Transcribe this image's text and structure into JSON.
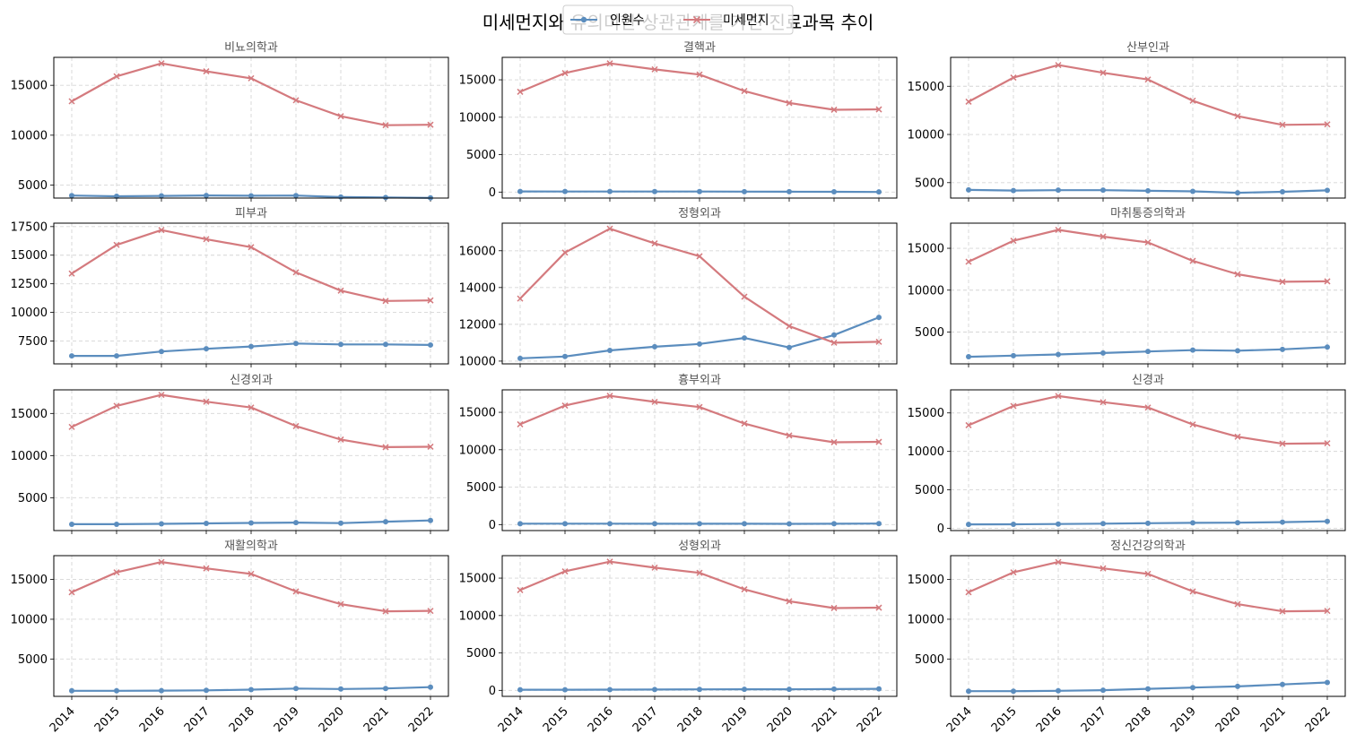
{
  "figure": {
    "title": "미세먼지와 유의미한 상관관계를 가진 진료과목 추이"
  },
  "legend": {
    "placement": "upper center",
    "entries": [
      {
        "label": "인원수",
        "color": "#5B8DBE",
        "marker": "circle"
      },
      {
        "label": "미세먼지",
        "color": "#D47A7E",
        "marker": "x"
      }
    ]
  },
  "colors": {
    "count": "#5B8DBE",
    "dust": "#D47A7E",
    "grid": "#d6d6d6"
  },
  "chart_data": [
    {
      "type": "line",
      "title": "비뇨의학과",
      "x": [
        2014,
        2015,
        2016,
        2017,
        2018,
        2019,
        2020,
        2021,
        2022
      ],
      "ylim": [
        3700,
        17800
      ],
      "yticks": [
        5000,
        10000,
        15000
      ],
      "grid": true,
      "series": [
        {
          "name": "인원수",
          "values": [
            3950,
            3880,
            3920,
            3960,
            3930,
            3950,
            3800,
            3760,
            3720
          ]
        },
        {
          "name": "미세먼지",
          "values": [
            13400,
            15900,
            17200,
            16400,
            15700,
            13500,
            11900,
            11000,
            11050
          ]
        }
      ]
    },
    {
      "type": "line",
      "title": "결핵과",
      "x": [
        2014,
        2015,
        2016,
        2017,
        2018,
        2019,
        2020,
        2021,
        2022
      ],
      "ylim": [
        -800,
        18000
      ],
      "yticks": [
        0,
        5000,
        10000,
        15000
      ],
      "grid": true,
      "series": [
        {
          "name": "인원수",
          "values": [
            90,
            80,
            80,
            70,
            70,
            60,
            50,
            40,
            20
          ]
        },
        {
          "name": "미세먼지",
          "values": [
            13400,
            15900,
            17200,
            16400,
            15700,
            13500,
            11900,
            11000,
            11050
          ]
        }
      ]
    },
    {
      "type": "line",
      "title": "산부인과",
      "x": [
        2014,
        2015,
        2016,
        2017,
        2018,
        2019,
        2020,
        2021,
        2022
      ],
      "ylim": [
        3400,
        18000
      ],
      "yticks": [
        5000,
        10000,
        15000
      ],
      "grid": true,
      "series": [
        {
          "name": "인원수",
          "values": [
            4250,
            4180,
            4220,
            4220,
            4150,
            4100,
            3950,
            4050,
            4200
          ]
        },
        {
          "name": "미세먼지",
          "values": [
            13400,
            15900,
            17200,
            16400,
            15700,
            13500,
            11900,
            11000,
            11050
          ]
        }
      ]
    },
    {
      "type": "line",
      "title": "피부과",
      "x": [
        2014,
        2015,
        2016,
        2017,
        2018,
        2019,
        2020,
        2021,
        2022
      ],
      "ylim": [
        5500,
        17800
      ],
      "yticks": [
        7500,
        10000,
        12500,
        15000,
        17500
      ],
      "grid": true,
      "series": [
        {
          "name": "인원수",
          "values": [
            6200,
            6200,
            6580,
            6820,
            7020,
            7280,
            7200,
            7200,
            7150
          ]
        },
        {
          "name": "미세먼지",
          "values": [
            13400,
            15900,
            17200,
            16400,
            15700,
            13500,
            11900,
            11000,
            11050
          ]
        }
      ]
    },
    {
      "type": "line",
      "title": "정형외과",
      "x": [
        2014,
        2015,
        2016,
        2017,
        2018,
        2019,
        2020,
        2021,
        2022
      ],
      "ylim": [
        9850,
        17500
      ],
      "yticks": [
        10000,
        12000,
        14000,
        16000
      ],
      "grid": true,
      "series": [
        {
          "name": "인원수",
          "values": [
            10150,
            10250,
            10580,
            10780,
            10930,
            11260,
            10740,
            11420,
            12380
          ]
        },
        {
          "name": "미세먼지",
          "values": [
            13400,
            15900,
            17200,
            16400,
            15700,
            13500,
            11900,
            11000,
            11050
          ]
        }
      ]
    },
    {
      "type": "line",
      "title": "마취통증의학과",
      "x": [
        2014,
        2015,
        2016,
        2017,
        2018,
        2019,
        2020,
        2021,
        2022
      ],
      "ylim": [
        1200,
        18000
      ],
      "yticks": [
        5000,
        10000,
        15000
      ],
      "grid": true,
      "series": [
        {
          "name": "인원수",
          "values": [
            2050,
            2180,
            2320,
            2500,
            2680,
            2840,
            2770,
            2930,
            3200
          ]
        },
        {
          "name": "미세먼지",
          "values": [
            13400,
            15900,
            17200,
            16400,
            15700,
            13500,
            11900,
            11000,
            11050
          ]
        }
      ]
    },
    {
      "type": "line",
      "title": "신경외과",
      "x": [
        2014,
        2015,
        2016,
        2017,
        2018,
        2019,
        2020,
        2021,
        2022
      ],
      "ylim": [
        1100,
        17800
      ],
      "yticks": [
        5000,
        10000,
        15000
      ],
      "grid": true,
      "series": [
        {
          "name": "인원수",
          "values": [
            1850,
            1850,
            1900,
            1950,
            2000,
            2050,
            1980,
            2150,
            2300
          ]
        },
        {
          "name": "미세먼지",
          "values": [
            13400,
            15900,
            17200,
            16400,
            15700,
            13500,
            11900,
            11000,
            11050
          ]
        }
      ]
    },
    {
      "type": "line",
      "title": "흉부외과",
      "x": [
        2014,
        2015,
        2016,
        2017,
        2018,
        2019,
        2020,
        2021,
        2022
      ],
      "ylim": [
        -800,
        18000
      ],
      "yticks": [
        0,
        5000,
        10000,
        15000
      ],
      "grid": true,
      "series": [
        {
          "name": "인원수",
          "values": [
            120,
            120,
            120,
            110,
            110,
            110,
            100,
            110,
            130
          ]
        },
        {
          "name": "미세먼지",
          "values": [
            13400,
            15900,
            17200,
            16400,
            15700,
            13500,
            11900,
            11000,
            11050
          ]
        }
      ]
    },
    {
      "type": "line",
      "title": "신경과",
      "x": [
        2014,
        2015,
        2016,
        2017,
        2018,
        2019,
        2020,
        2021,
        2022
      ],
      "ylim": [
        -300,
        18000
      ],
      "yticks": [
        0,
        5000,
        10000,
        15000
      ],
      "grid": true,
      "series": [
        {
          "name": "인원수",
          "values": [
            500,
            520,
            550,
            600,
            650,
            700,
            720,
            800,
            900
          ]
        },
        {
          "name": "미세먼지",
          "values": [
            13400,
            15900,
            17200,
            16400,
            15700,
            13500,
            11900,
            11000,
            11050
          ]
        }
      ]
    },
    {
      "type": "line",
      "title": "재활의학과",
      "x": [
        2014,
        2015,
        2016,
        2017,
        2018,
        2019,
        2020,
        2021,
        2022
      ],
      "ylim": [
        300,
        18000
      ],
      "yticks": [
        5000,
        10000,
        15000
      ],
      "grid": true,
      "series": [
        {
          "name": "인원수",
          "values": [
            1000,
            1000,
            1020,
            1060,
            1150,
            1280,
            1230,
            1290,
            1460
          ]
        },
        {
          "name": "미세먼지",
          "values": [
            13400,
            15900,
            17200,
            16400,
            15700,
            13500,
            11900,
            11000,
            11050
          ]
        }
      ]
    },
    {
      "type": "line",
      "title": "성형외과",
      "x": [
        2014,
        2015,
        2016,
        2017,
        2018,
        2019,
        2020,
        2021,
        2022
      ],
      "ylim": [
        -800,
        18000
      ],
      "yticks": [
        0,
        5000,
        10000,
        15000
      ],
      "grid": true,
      "series": [
        {
          "name": "인원수",
          "values": [
            90,
            90,
            100,
            110,
            130,
            140,
            150,
            170,
            200
          ]
        },
        {
          "name": "미세먼지",
          "values": [
            13400,
            15900,
            17200,
            16400,
            15700,
            13500,
            11900,
            11000,
            11050
          ]
        }
      ]
    },
    {
      "type": "line",
      "title": "정신건강의학과",
      "x": [
        2014,
        2015,
        2016,
        2017,
        2018,
        2019,
        2020,
        2021,
        2022
      ],
      "ylim": [
        300,
        18000
      ],
      "yticks": [
        5000,
        10000,
        15000
      ],
      "grid": true,
      "series": [
        {
          "name": "인원수",
          "values": [
            950,
            950,
            1000,
            1080,
            1250,
            1400,
            1550,
            1800,
            2050
          ]
        },
        {
          "name": "미세먼지",
          "values": [
            13400,
            15900,
            17200,
            16400,
            15700,
            13500,
            11900,
            11000,
            11050
          ]
        }
      ]
    }
  ]
}
